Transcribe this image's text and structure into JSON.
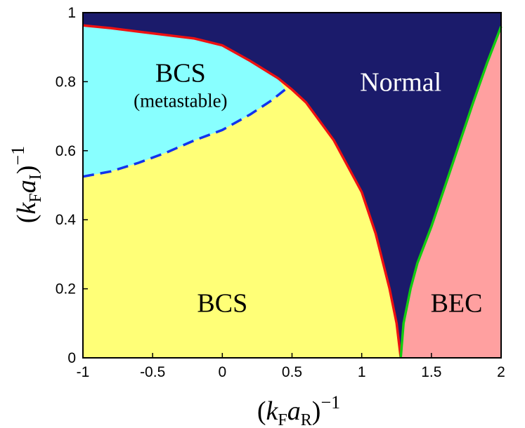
{
  "chart_data": {
    "type": "area",
    "title": "",
    "xlim": [
      -1,
      2
    ],
    "ylim": [
      0,
      1
    ],
    "x_ticks": [
      {
        "value": -1,
        "label": "-1"
      },
      {
        "value": -0.5,
        "label": "-0.5"
      },
      {
        "value": 0,
        "label": "0"
      },
      {
        "value": 0.5,
        "label": "0.5"
      },
      {
        "value": 1,
        "label": "1"
      },
      {
        "value": 1.5,
        "label": "1.5"
      },
      {
        "value": 2,
        "label": "2"
      }
    ],
    "y_ticks": [
      {
        "value": 0,
        "label": "0"
      },
      {
        "value": 0.2,
        "label": "0.2"
      },
      {
        "value": 0.4,
        "label": "0.4"
      },
      {
        "value": 0.6,
        "label": "0.6"
      },
      {
        "value": 0.8,
        "label": "0.8"
      },
      {
        "value": 1,
        "label": "1"
      }
    ],
    "xlabel": {
      "open": "(",
      "k": "k",
      "k_sub": "F",
      "a": "a",
      "a_sub": "R",
      "close": ")",
      "sup": "−1"
    },
    "ylabel": {
      "open": "(",
      "k": "k",
      "k_sub": "F",
      "a": "a",
      "a_sub": "I",
      "close": ")",
      "sup": "−1"
    },
    "grid": false,
    "legend": "none",
    "colors": {
      "normal": "#1b1b6b",
      "bcs": "#ffff77",
      "bcs_metastable": "#88ffff",
      "bec": "#ffa0a0",
      "red_boundary": "#ee1111",
      "green_boundary": "#11cc11",
      "dashed_boundary": "#1133ee"
    },
    "regions": [
      {
        "key": "normal",
        "line1": "Normal",
        "line2": "",
        "at": [
          1.28,
          0.8
        ]
      },
      {
        "key": "bcs_metastable",
        "line1": "BCS",
        "line2": "(metastable)",
        "at": [
          -0.3,
          0.8
        ]
      },
      {
        "key": "bcs",
        "line1": "BCS",
        "line2": "",
        "at": [
          0,
          0.16
        ]
      },
      {
        "key": "bec",
        "line1": "BEC",
        "line2": "",
        "at": [
          1.68,
          0.16
        ]
      }
    ],
    "boundaries": {
      "red_solid": [
        [
          -1,
          0.963
        ],
        [
          -0.8,
          0.955
        ],
        [
          -0.6,
          0.945
        ],
        [
          -0.4,
          0.935
        ],
        [
          -0.2,
          0.925
        ],
        [
          0,
          0.905
        ],
        [
          0.2,
          0.86
        ],
        [
          0.4,
          0.81
        ],
        [
          0.5,
          0.777
        ],
        [
          0.6,
          0.74
        ],
        [
          0.8,
          0.63
        ],
        [
          1.0,
          0.48
        ],
        [
          1.1,
          0.36
        ],
        [
          1.2,
          0.2
        ],
        [
          1.25,
          0.1
        ],
        [
          1.28,
          0
        ]
      ],
      "green_solid": [
        [
          1.28,
          0
        ],
        [
          1.3,
          0.1
        ],
        [
          1.35,
          0.2
        ],
        [
          1.4,
          0.275
        ],
        [
          1.5,
          0.38
        ],
        [
          1.6,
          0.5
        ],
        [
          1.7,
          0.62
        ],
        [
          1.8,
          0.74
        ],
        [
          1.9,
          0.855
        ],
        [
          2.0,
          0.96
        ]
      ],
      "blue_dashed": [
        [
          -1,
          0.525
        ],
        [
          -0.8,
          0.54
        ],
        [
          -0.6,
          0.565
        ],
        [
          -0.4,
          0.595
        ],
        [
          -0.2,
          0.63
        ],
        [
          0,
          0.66
        ],
        [
          0.2,
          0.705
        ],
        [
          0.35,
          0.745
        ],
        [
          0.45,
          0.777
        ]
      ]
    }
  }
}
